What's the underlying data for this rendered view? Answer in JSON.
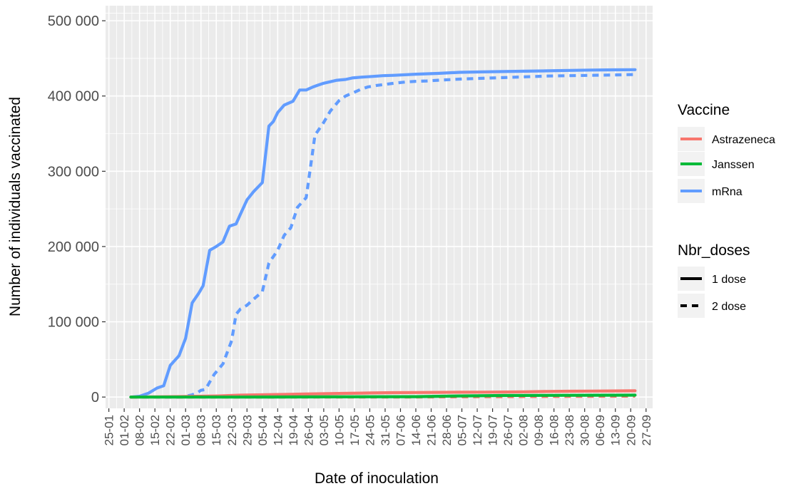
{
  "chart_data": {
    "type": "line",
    "xlabel": "Date of inoculation",
    "ylabel": "Number of individuals vaccinated",
    "x_tick_labels": [
      "25-01",
      "01-02",
      "08-02",
      "15-02",
      "22-02",
      "01-03",
      "08-03",
      "15-03",
      "22-03",
      "29-03",
      "05-04",
      "12-04",
      "19-04",
      "26-04",
      "03-05",
      "10-05",
      "17-05",
      "24-05",
      "31-05",
      "07-06",
      "14-06",
      "21-06",
      "28-06",
      "05-07",
      "12-07",
      "19-07",
      "26-07",
      "02-08",
      "09-08",
      "16-08",
      "23-08",
      "30-08",
      "06-09",
      "13-09",
      "20-09",
      "27-09"
    ],
    "y_tick_labels": [
      "0",
      "100 000",
      "200 000",
      "300 000",
      "400 000",
      "500 000"
    ],
    "y_ticks": [
      0,
      100000,
      200000,
      300000,
      400000,
      500000
    ],
    "x_unit": "days since 25-01",
    "xlim": [
      -1.5,
      248
    ],
    "ylim": [
      -15000,
      520000
    ],
    "grid": true,
    "legend_position": "right",
    "legends": [
      {
        "title": "Vaccine",
        "entries": [
          {
            "label": "Astrazeneca",
            "color": "#F8766D"
          },
          {
            "label": "Janssen",
            "color": "#00BA38"
          },
          {
            "label": "mRna",
            "color": "#619CFF"
          }
        ]
      },
      {
        "title": "Nbr_doses",
        "entries": [
          {
            "label": "1 dose",
            "dash": "solid"
          },
          {
            "label": "2 dose",
            "dash": "dashed"
          }
        ]
      }
    ],
    "series": [
      {
        "vaccine": "mRna",
        "doses": "1 dose",
        "color": "#619CFF",
        "dash": "solid",
        "x": [
          10,
          14,
          18,
          22,
          25,
          28,
          32,
          35,
          38,
          41,
          43,
          46,
          49,
          52,
          55,
          58,
          60,
          63,
          66,
          70,
          73,
          75,
          77,
          80,
          84,
          87,
          90,
          93,
          95,
          98,
          101,
          104,
          108,
          111,
          115,
          120,
          125,
          130,
          140,
          150,
          160,
          170,
          180,
          190,
          200,
          210,
          220,
          230,
          240
        ],
        "y": [
          0,
          1000,
          5000,
          12000,
          15000,
          42000,
          55000,
          78000,
          125000,
          138000,
          148000,
          195000,
          200000,
          206000,
          227000,
          230000,
          243000,
          262000,
          273000,
          285000,
          360000,
          366000,
          378000,
          388000,
          393000,
          408000,
          408000,
          412000,
          414000,
          417000,
          419000,
          421000,
          422000,
          424000,
          425000,
          426000,
          427000,
          427500,
          429000,
          430000,
          431500,
          432000,
          432500,
          433000,
          433500,
          434000,
          434500,
          434800,
          435000
        ]
      },
      {
        "vaccine": "mRna",
        "doses": "2 dose",
        "color": "#619CFF",
        "dash": "dashed",
        "x": [
          10,
          20,
          28,
          32,
          35,
          38,
          40,
          42,
          44,
          48,
          52,
          56,
          58,
          60,
          63,
          66,
          70,
          73,
          77,
          80,
          83,
          86,
          90,
          94,
          98,
          101,
          105,
          108,
          112,
          115,
          118,
          122,
          126,
          130,
          135,
          140,
          145,
          150,
          160,
          170,
          180,
          190,
          200,
          210,
          220,
          230,
          240
        ],
        "y": [
          0,
          0,
          0,
          0,
          1000,
          3000,
          5000,
          9000,
          10000,
          30000,
          44000,
          75000,
          110000,
          117000,
          122000,
          130000,
          140000,
          178000,
          195000,
          215000,
          225000,
          252000,
          265000,
          348000,
          365000,
          380000,
          394000,
          400000,
          405000,
          409000,
          412000,
          414000,
          415500,
          417000,
          418500,
          419500,
          420000,
          421000,
          422500,
          423500,
          424500,
          425500,
          426500,
          427000,
          427500,
          428000,
          428500
        ]
      },
      {
        "vaccine": "Astrazeneca",
        "doses": "1 dose",
        "color": "#F8766D",
        "dash": "solid",
        "x": [
          10,
          30,
          50,
          60,
          70,
          80,
          90,
          100,
          110,
          120,
          130,
          140,
          150,
          160,
          170,
          180,
          190,
          200,
          210,
          220,
          230,
          240
        ],
        "y": [
          0,
          500,
          1500,
          2500,
          3000,
          3500,
          4000,
          4500,
          5000,
          5500,
          5800,
          6000,
          6200,
          6400,
          6500,
          6700,
          7000,
          7400,
          7700,
          7900,
          8100,
          8300
        ]
      },
      {
        "vaccine": "Astrazeneca",
        "doses": "2 dose",
        "color": "#F8766D",
        "dash": "dashed",
        "x": [
          10,
          60,
          100,
          140,
          160,
          180,
          200,
          220,
          240
        ],
        "y": [
          0,
          0,
          0,
          100,
          300,
          500,
          800,
          1000,
          1200
        ]
      },
      {
        "vaccine": "Janssen",
        "doses": "1 dose",
        "color": "#00BA38",
        "dash": "solid",
        "x": [
          10,
          60,
          100,
          140,
          160,
          180,
          200,
          220,
          240
        ],
        "y": [
          0,
          0,
          200,
          500,
          1500,
          2000,
          2200,
          2400,
          2500
        ]
      }
    ]
  }
}
